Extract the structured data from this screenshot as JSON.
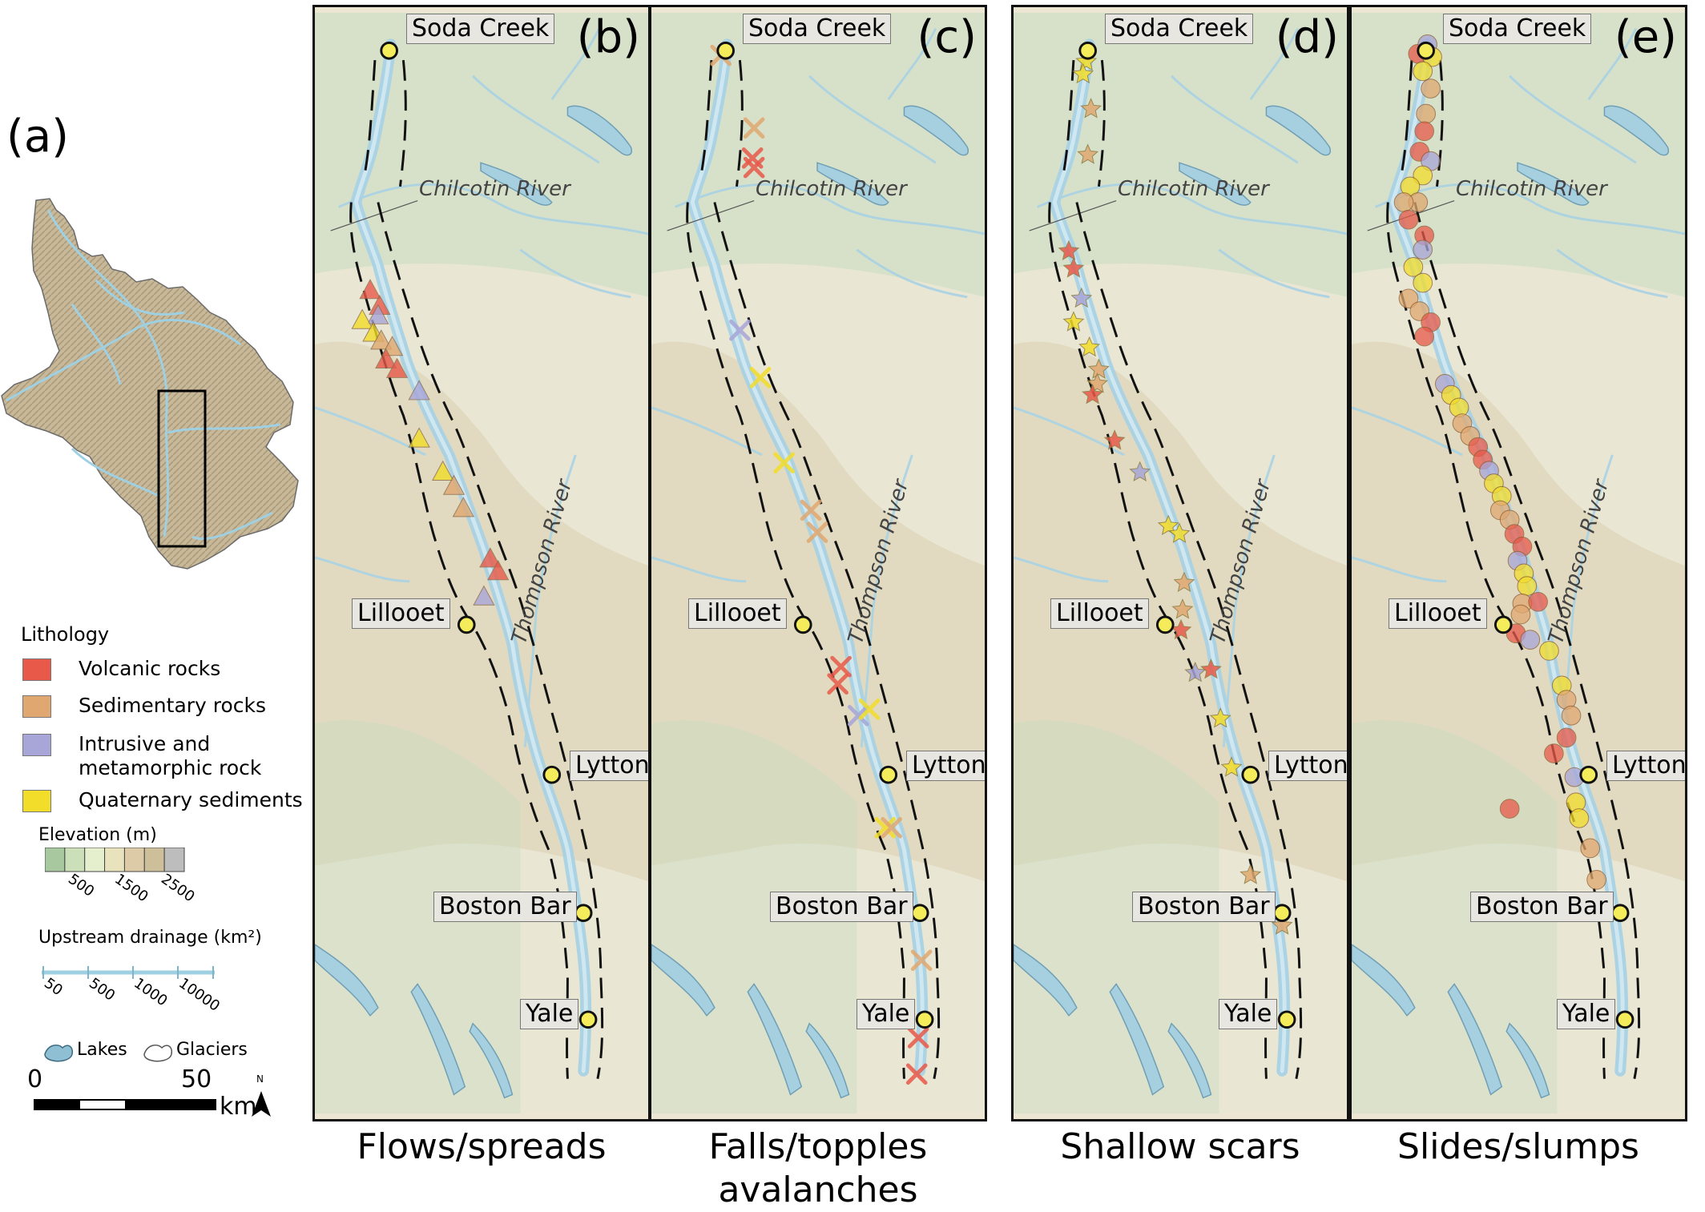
{
  "figure": {
    "panel_a_label": "(a)",
    "panels": [
      {
        "id": "b",
        "letter": "(b)",
        "caption_line1": "Flows/spreads",
        "caption_line2": "",
        "symbol": "triangle"
      },
      {
        "id": "c",
        "letter": "(c)",
        "caption_line1": "Falls/topples",
        "caption_line2": "avalanches",
        "symbol": "cross"
      },
      {
        "id": "d",
        "letter": "(d)",
        "caption_line1": "Shallow scars",
        "caption_line2": "",
        "symbol": "star"
      },
      {
        "id": "e",
        "letter": "(e)",
        "caption_line1": "Slides/slumps",
        "caption_line2": "",
        "symbol": "circle"
      }
    ],
    "towns": {
      "soda_creek": "Soda Creek",
      "lillooet": "Lillooet",
      "lytton": "Lytton",
      "boston_bar": "Boston Bar",
      "yale": "Yale"
    },
    "rivers": {
      "chilcotin": "Chilcotin River",
      "thompson": "Thompson River"
    }
  },
  "legend": {
    "lithology_title": "Lithology",
    "lithology": [
      {
        "label": "Volcanic rocks",
        "color": "#e8594a"
      },
      {
        "label": "Sedimentary rocks",
        "color": "#e0a870"
      },
      {
        "label": "Intrusive and",
        "label2": "metamorphic rock",
        "color": "#a8a6d8"
      },
      {
        "label": "Quaternary sediments",
        "color": "#f2dd2a"
      }
    ],
    "elevation_title": "Elevation (m)",
    "elevation_ticks": [
      "500",
      "1500",
      "2500"
    ],
    "elevation_colors": [
      "#a8c9a0",
      "#cbe0b9",
      "#e6efcd",
      "#e9e3bd",
      "#dccba6",
      "#cdbf9a",
      "#bdbdbd"
    ],
    "drainage_title": "Upstream drainage (km²)",
    "drainage_ticks": [
      "50",
      "500",
      "1000",
      "10000"
    ],
    "lakes_label": "Lakes",
    "glaciers_label": "Glaciers",
    "scale_left": "0",
    "scale_right": "50",
    "scale_unit": "km",
    "north": "N"
  },
  "colors": {
    "volcanic": "#e8594a",
    "sedimentary": "#e0a870",
    "intrusive": "#a8a6d8",
    "quaternary": "#f2dd2a",
    "water": "#a9d2e4",
    "terrain_low": "#e9e6d3",
    "terrain_mid": "#ddd4b8",
    "terrain_green": "#c9dcc2"
  }
}
